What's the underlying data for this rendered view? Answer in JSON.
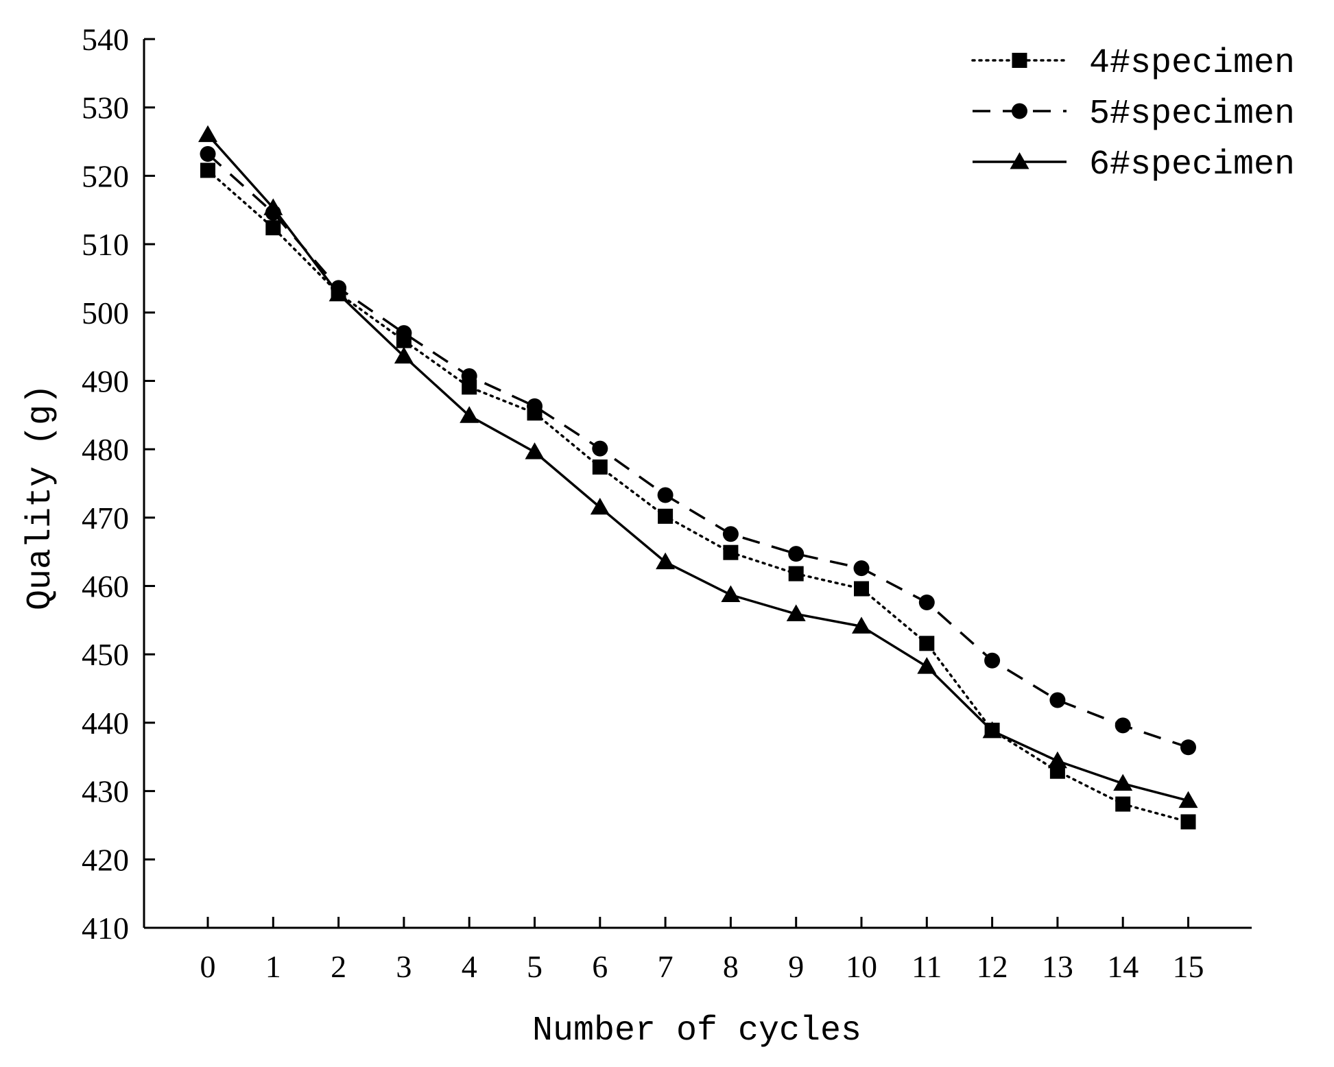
{
  "chart_data": {
    "type": "line",
    "title": "",
    "xlabel": "Number of cycles",
    "ylabel": "Quality (g)",
    "x": [
      0,
      1,
      2,
      3,
      4,
      5,
      6,
      7,
      8,
      9,
      10,
      11,
      12,
      13,
      14,
      15
    ],
    "ylim": [
      410,
      540
    ],
    "yticks": [
      410,
      420,
      430,
      440,
      450,
      460,
      470,
      480,
      490,
      500,
      510,
      520,
      530,
      540
    ],
    "legend_position": "top-right",
    "grid": false,
    "series": [
      {
        "name": "4#specimen",
        "marker": "square",
        "line_style": "dotted",
        "values": [
          520.8,
          512.4,
          502.8,
          495.9,
          489.1,
          485.3,
          477.4,
          470.2,
          464.9,
          461.8,
          459.6,
          451.6,
          438.9,
          432.9,
          428.1,
          425.5
        ]
      },
      {
        "name": "5#specimen",
        "marker": "circle",
        "line_style": "dashed",
        "values": [
          523.2,
          514.6,
          503.6,
          497.0,
          490.7,
          486.3,
          480.1,
          473.3,
          467.6,
          464.7,
          462.6,
          457.6,
          449.1,
          443.3,
          439.6,
          436.4
        ]
      },
      {
        "name": "6#specimen",
        "marker": "triangle",
        "line_style": "solid",
        "values": [
          526.0,
          515.3,
          502.7,
          493.6,
          484.9,
          479.6,
          471.5,
          463.5,
          458.7,
          455.9,
          454.1,
          448.2,
          438.8,
          434.4,
          431.1,
          428.6
        ]
      }
    ]
  }
}
